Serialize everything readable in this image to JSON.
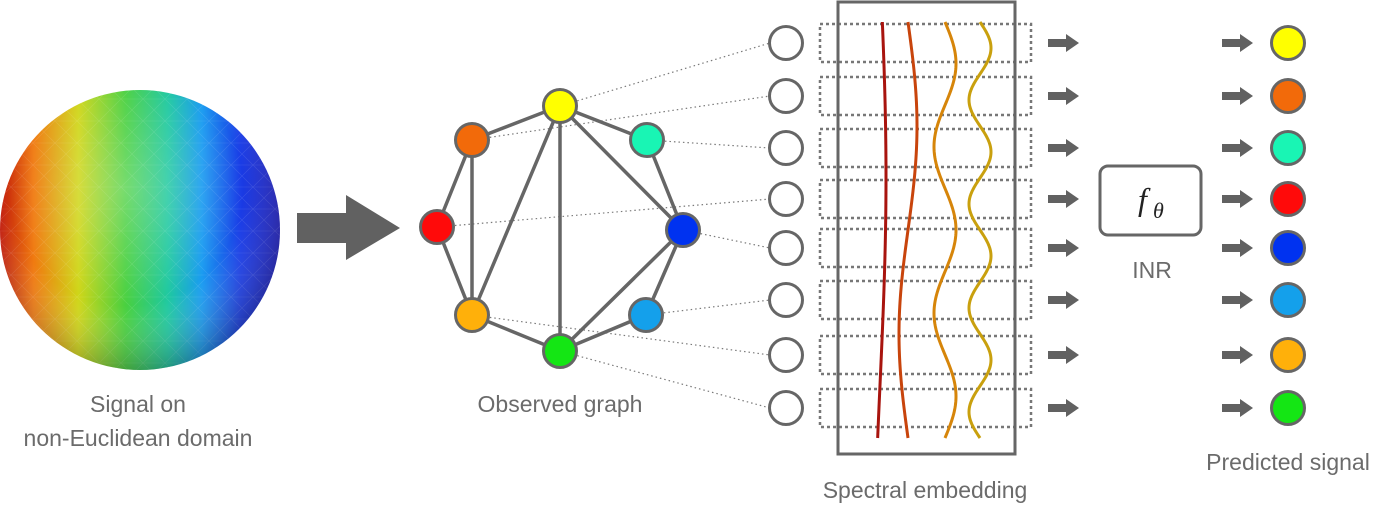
{
  "labels": {
    "signal_line1": "Signal on",
    "signal_line2": "non-Euclidean domain",
    "observed_graph": "Observed graph",
    "spectral_embedding": "Spectral embedding",
    "inr": "INR",
    "predicted_signal": "Predicted signal",
    "function_symbol": "f",
    "function_subscript": "θ"
  },
  "graph_nodes": [
    {
      "id": "yellow",
      "color": "#ffff00"
    },
    {
      "id": "orange",
      "color": "#f26a0a"
    },
    {
      "id": "cyan",
      "color": "#19f5b4"
    },
    {
      "id": "red",
      "color": "#ff0a0a"
    },
    {
      "id": "blue",
      "color": "#0032f0"
    },
    {
      "id": "gold",
      "color": "#ffb00a"
    },
    {
      "id": "lightblue",
      "color": "#14a0eb"
    },
    {
      "id": "green",
      "color": "#14e614"
    }
  ],
  "predicted_colors": [
    "#ffff00",
    "#f26a0a",
    "#19f5b4",
    "#ff0a0a",
    "#0032f0",
    "#14a0eb",
    "#ffb00a",
    "#14e614"
  ],
  "wave_colors": [
    "#a8140e",
    "#c8440c",
    "#d6850a",
    "#c9a00e"
  ],
  "colors": {
    "stroke": "#666666",
    "arrow": "#616161",
    "text": "#6b6b6b"
  }
}
